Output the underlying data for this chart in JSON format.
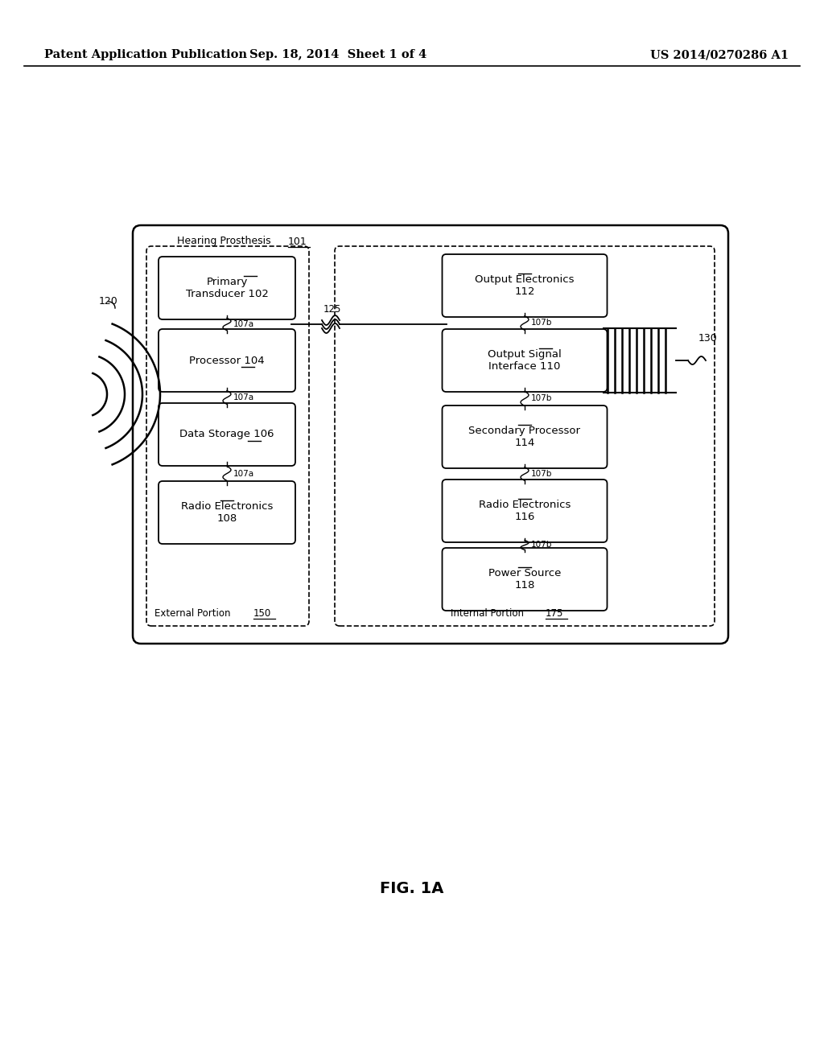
{
  "header_left": "Patent Application Publication",
  "header_mid": "Sep. 18, 2014  Sheet 1 of 4",
  "header_right": "US 2014/0270286 A1",
  "fig_label": "FIG. 1A",
  "background": "#ffffff"
}
